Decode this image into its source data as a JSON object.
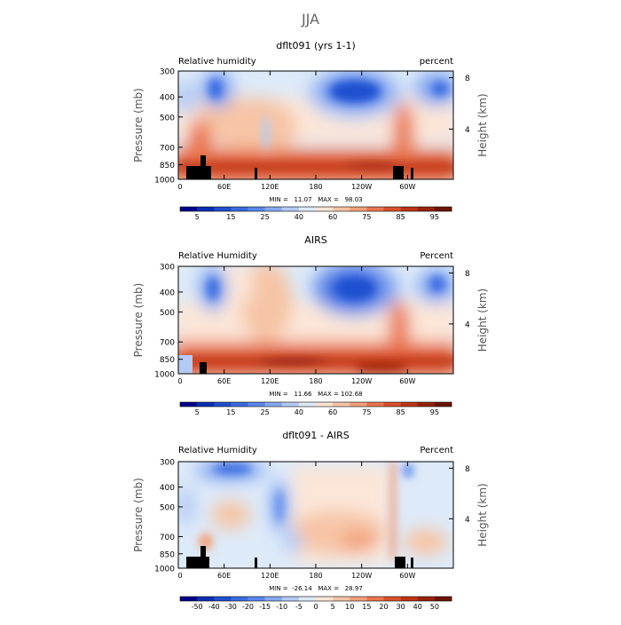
{
  "page": {
    "title": "JJA"
  },
  "colors": {
    "cb_rh": [
      "#00008b",
      "#0a2fb4",
      "#1f4fcf",
      "#3a6be0",
      "#5a88ec",
      "#86a9f1",
      "#b3cbf5",
      "#ddeaf8",
      "#fbe6d8",
      "#f6c5a6",
      "#f2a07a",
      "#ea7650",
      "#d9502b",
      "#be3515",
      "#98220a",
      "#6b1402"
    ],
    "cb_diff": [
      "#00008b",
      "#0a2fb4",
      "#1f4fcf",
      "#3a6be0",
      "#5a88ec",
      "#86a9f1",
      "#b3cbf5",
      "#ddeaf8",
      "#fbe6d8",
      "#f6c5a6",
      "#f2a07a",
      "#ea7650",
      "#d9502b",
      "#be3515",
      "#98220a",
      "#6b1402"
    ]
  },
  "axes": {
    "y_title": "Pressure (mb)",
    "y2_title": "Height (km)",
    "y_ticks": [
      "300",
      "400",
      "500",
      "700",
      "850",
      "1000"
    ],
    "y2_ticks": [
      "8",
      "4"
    ],
    "x_ticks": [
      "0",
      "60E",
      "120E",
      "180",
      "120W",
      "60W"
    ]
  },
  "panels": [
    {
      "title": "dflt091 (yrs 1-1)",
      "left_label": "Relative humidity",
      "right_label": "percent",
      "stats": "MIN =   11.07   MAX =   98.03",
      "colorbar_labels": [
        "5",
        "15",
        "25",
        "40",
        "60",
        "75",
        "85",
        "95"
      ]
    },
    {
      "title": "AIRS",
      "left_label": "Relative Humidity",
      "right_label": "Percent",
      "stats": "MIN =   11.66   MAX = 102.68",
      "colorbar_labels": [
        "5",
        "15",
        "25",
        "40",
        "60",
        "75",
        "85",
        "95"
      ]
    },
    {
      "title": "dflt091 - AIRS",
      "left_label": "Relative Humidity",
      "right_label": "Percent",
      "stats": "MIN =  -26.14   MAX =   28.97",
      "colorbar_labels": [
        "-50",
        "-40",
        "-30",
        "-20",
        "-15",
        "-10",
        "-5",
        "0",
        "5",
        "10",
        "15",
        "20",
        "30",
        "40",
        "50"
      ]
    }
  ],
  "chart_data": [
    {
      "type": "heatmap",
      "title": "dflt091 (yrs 1-1)",
      "xlabel": "",
      "ylabel": "Pressure (mb)",
      "y2label": "Height (km)",
      "x_ticks": [
        "0",
        "60E",
        "120E",
        "180",
        "120W",
        "60W"
      ],
      "y_ticks": [
        300,
        400,
        500,
        700,
        850,
        1000
      ],
      "ylim": [
        1000,
        300
      ],
      "yscale": "log-pressure",
      "levels": [
        5,
        10,
        15,
        20,
        25,
        30,
        40,
        50,
        60,
        70,
        75,
        80,
        85,
        90,
        95
      ],
      "min": 11.07,
      "max": 98.03,
      "features": [
        {
          "lon": 40,
          "p": 450,
          "value": 15
        },
        {
          "lon": 200,
          "p": 460,
          "value": 12
        },
        {
          "lon": 330,
          "p": 430,
          "value": 18
        },
        {
          "lon": 100,
          "p": 700,
          "value": 55
        },
        {
          "lon": 260,
          "p": 700,
          "value": 45
        },
        {
          "lon": 180,
          "p": 900,
          "value": 92
        },
        {
          "lon": 290,
          "p": 880,
          "value": 95
        }
      ]
    },
    {
      "type": "heatmap",
      "title": "AIRS",
      "xlabel": "",
      "ylabel": "Pressure (mb)",
      "y2label": "Height (km)",
      "x_ticks": [
        "0",
        "60E",
        "120E",
        "180",
        "120W",
        "60W"
      ],
      "y_ticks": [
        300,
        400,
        500,
        700,
        850,
        1000
      ],
      "ylim": [
        1000,
        300
      ],
      "yscale": "log-pressure",
      "levels": [
        5,
        10,
        15,
        20,
        25,
        30,
        40,
        50,
        60,
        70,
        75,
        80,
        85,
        90,
        95
      ],
      "min": 11.66,
      "max": 102.68,
      "features": [
        {
          "lon": 38,
          "p": 430,
          "value": 12
        },
        {
          "lon": 200,
          "p": 430,
          "value": 10
        },
        {
          "lon": 335,
          "p": 420,
          "value": 15
        },
        {
          "lon": 150,
          "p": 700,
          "value": 55
        },
        {
          "lon": 260,
          "p": 700,
          "value": 40
        },
        {
          "lon": 160,
          "p": 920,
          "value": 95
        },
        {
          "lon": 270,
          "p": 950,
          "value": 98
        }
      ]
    },
    {
      "type": "heatmap",
      "title": "dflt091 - AIRS",
      "xlabel": "",
      "ylabel": "Pressure (mb)",
      "y2label": "Height (km)",
      "x_ticks": [
        "0",
        "60E",
        "120E",
        "180",
        "120W",
        "60W"
      ],
      "y_ticks": [
        300,
        400,
        500,
        700,
        850,
        1000
      ],
      "ylim": [
        1000,
        300
      ],
      "yscale": "log-pressure",
      "levels": [
        -50,
        -40,
        -30,
        -20,
        -15,
        -10,
        -5,
        0,
        5,
        10,
        15,
        20,
        30,
        40,
        50
      ],
      "min": -26.14,
      "max": 28.97,
      "features": [
        {
          "lon": 30,
          "p": 330,
          "value": -20
        },
        {
          "lon": 60,
          "p": 650,
          "value": -10
        },
        {
          "lon": 120,
          "p": 700,
          "value": -15
        },
        {
          "lon": 240,
          "p": 500,
          "value": 8
        },
        {
          "lon": 270,
          "p": 800,
          "value": 12
        },
        {
          "lon": 300,
          "p": 850,
          "value": 15
        },
        {
          "lon": 330,
          "p": 650,
          "value": -5
        }
      ]
    }
  ]
}
